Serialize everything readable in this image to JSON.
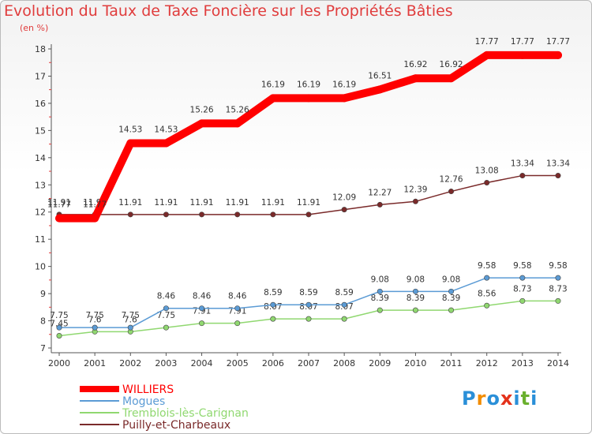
{
  "chart_data": {
    "type": "line",
    "title": "Evolution du Taux de Taxe Foncière sur les Propriétés Bâties",
    "subtitle": "(en %)",
    "x": [
      "2000",
      "2001",
      "2002",
      "2003",
      "2004",
      "2005",
      "2006",
      "2007",
      "2008",
      "2009",
      "2010",
      "2011",
      "2012",
      "2013",
      "2014"
    ],
    "y_ticks": [
      "7",
      "8",
      "9",
      "10",
      "11",
      "12",
      "13",
      "14",
      "15",
      "16",
      "17",
      "18"
    ],
    "ylim": [
      7,
      18
    ],
    "grid": false,
    "legend_position": "bottom-left",
    "series": [
      {
        "name": "WILLIERS",
        "color": "#ff0000",
        "values": [
          11.77,
          11.77,
          14.53,
          14.53,
          15.26,
          15.26,
          16.19,
          16.19,
          16.19,
          16.51,
          16.92,
          16.92,
          17.77,
          17.77,
          17.77
        ],
        "labels": [
          "11.77",
          "11.77",
          "14.53",
          "14.53",
          "15.26",
          "15.26",
          "16.19",
          "16.19",
          "16.19",
          "16.51",
          "16.92",
          "16.92",
          "17.77",
          "17.77",
          "17.77"
        ]
      },
      {
        "name": "Mogues",
        "color": "#5b9bd5",
        "values": [
          7.75,
          7.75,
          7.75,
          8.46,
          8.46,
          8.46,
          8.59,
          8.59,
          8.59,
          9.08,
          9.08,
          9.08,
          9.58,
          9.58,
          9.58
        ],
        "labels": [
          "7.75",
          "7.75",
          "7.75",
          "8.46",
          "8.46",
          "8.46",
          "8.59",
          "8.59",
          "8.59",
          "9.08",
          "9.08",
          "9.08",
          "9.58",
          "9.58",
          "9.58"
        ]
      },
      {
        "name": "Tremblois-lès-Carignan",
        "color": "#90d870",
        "values": [
          7.45,
          7.6,
          7.6,
          7.75,
          7.91,
          7.91,
          8.07,
          8.07,
          8.07,
          8.39,
          8.39,
          8.39,
          8.56,
          8.73,
          8.73
        ],
        "labels": [
          "7.45",
          "7.6",
          "7.6",
          "7.75",
          "7.91",
          "7.91",
          "8.07",
          "8.07",
          "8.07",
          "8.39",
          "8.39",
          "8.39",
          "8.56",
          "8.73",
          "8.73"
        ]
      },
      {
        "name": "Puilly-et-Charbeaux",
        "color": "#7a2a2a",
        "values": [
          11.91,
          11.91,
          11.91,
          11.91,
          11.91,
          11.91,
          11.91,
          11.91,
          12.09,
          12.27,
          12.39,
          12.76,
          13.08,
          13.34,
          13.34
        ],
        "labels": [
          "11.91",
          "11.91",
          "11.91",
          "11.91",
          "11.91",
          "11.91",
          "11.91",
          "11.91",
          "12.09",
          "12.27",
          "12.39",
          "12.76",
          "13.08",
          "13.34",
          "13.34"
        ]
      }
    ]
  },
  "logo": {
    "letters": [
      "P",
      "r",
      "o",
      "x",
      "i",
      "t",
      "i"
    ],
    "colors": [
      "#2a8fd8",
      "#f28c00",
      "#2a8fd8",
      "#e4321b",
      "#2a8fd8",
      "#6ab02e",
      "#2a8fd8"
    ]
  }
}
